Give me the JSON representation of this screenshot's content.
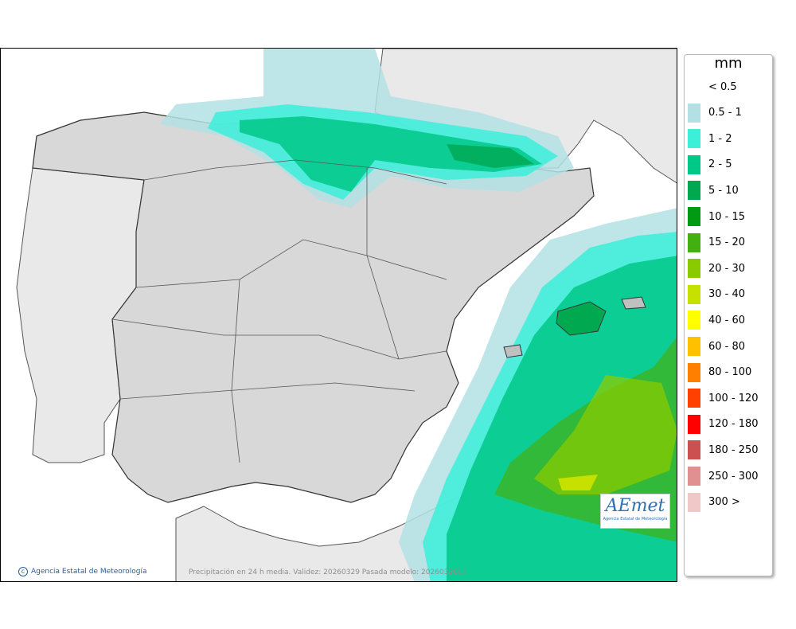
{
  "legend": {
    "title": "mm",
    "items": [
      {
        "label": "< 0.5",
        "color": "#ffffff"
      },
      {
        "label": "0.5 - 1",
        "color": "#b3e1e3"
      },
      {
        "label": "1 - 2",
        "color": "#3cefd9"
      },
      {
        "label": "2 - 5",
        "color": "#00c887"
      },
      {
        "label": "5 - 10",
        "color": "#00a850"
      },
      {
        "label": "10 - 15",
        "color": "#019a13"
      },
      {
        "label": "15 - 20",
        "color": "#43b012"
      },
      {
        "label": "20 - 30",
        "color": "#8acb00"
      },
      {
        "label": "30 - 40",
        "color": "#c6e000"
      },
      {
        "label": "40 - 60",
        "color": "#ffff00"
      },
      {
        "label": "60 - 80",
        "color": "#ffc000"
      },
      {
        "label": "80 - 100",
        "color": "#ff8000"
      },
      {
        "label": "100 - 120",
        "color": "#ff4000"
      },
      {
        "label": "120 - 180",
        "color": "#ff0000"
      },
      {
        "label": "180 - 250",
        "color": "#cc5050"
      },
      {
        "label": "250 - 300",
        "color": "#e09090"
      },
      {
        "label": "300 >",
        "color": "#f0c8c8"
      }
    ]
  },
  "map": {
    "credit": "Agencia Estatal de Meteorología",
    "footer": "Precipitación en 24 h media. Validez: 20260329 Pasada modelo: 2026032800",
    "logo_text": "AEmet",
    "logo_sub": "Agencia Estatal de Meteorología"
  }
}
